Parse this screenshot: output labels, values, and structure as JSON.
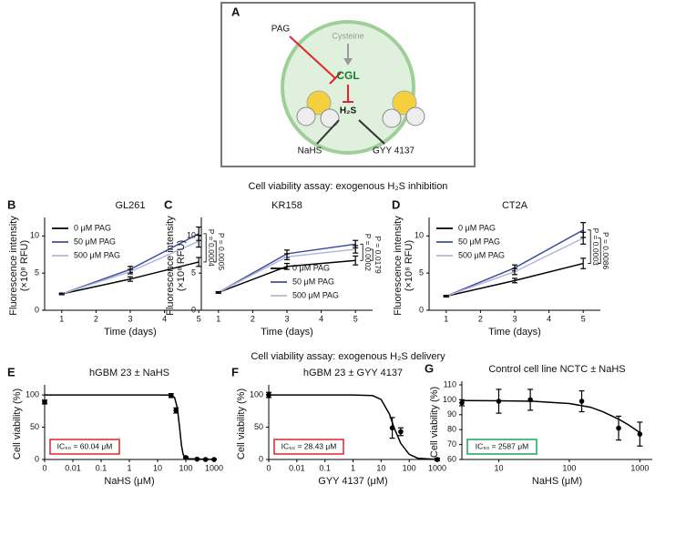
{
  "diagram": {
    "panel": "A",
    "inhibitor": "PAG",
    "substrate": "Cysteine",
    "enzyme": "CGL",
    "product": "H₂S",
    "donor_1": "NaHS",
    "donor_2": "GYY 4137"
  },
  "section_titles": [
    "Cell viability assay: exogenous H₂S inhibition",
    "Cell viability assay: exogenous H₂S delivery"
  ],
  "chart_data": [
    {
      "type": "line",
      "panel": "B",
      "title": "GL261",
      "xlabel": "Time (days)",
      "ylabel": [
        "Fluorescence intensity",
        "(×10⁸ RFU)"
      ],
      "x": [
        1,
        3,
        5
      ],
      "xlim": [
        0.5,
        5.5
      ],
      "xticks": [
        1,
        2,
        3,
        4,
        5
      ],
      "ylim": [
        0,
        12
      ],
      "yticks": [
        0,
        5,
        10
      ],
      "legend": "upper left",
      "series": [
        {
          "name": "0 μM PAG",
          "color": "#000000",
          "values": [
            2.2,
            4.2,
            6.5
          ],
          "errors": [
            0.1,
            0.3,
            0.6
          ]
        },
        {
          "name": "50 μM PAG",
          "color": "#3d50a0",
          "values": [
            2.2,
            5.5,
            10.3
          ],
          "errors": [
            0.1,
            0.4,
            0.9
          ]
        },
        {
          "name": "500 μM PAG",
          "color": "#b3b6dc",
          "values": [
            2.2,
            5.2,
            9.3
          ],
          "errors": [
            0.1,
            0.3,
            0.8
          ]
        }
      ],
      "annotations": [
        "P = 0.0004",
        "P = 0.0005"
      ]
    },
    {
      "type": "line",
      "panel": "C",
      "title": "KR158",
      "xlabel": "Time (days)",
      "ylabel": [
        "Fluorescence intensity",
        "(×10⁸ RFU)"
      ],
      "x": [
        1,
        3,
        5
      ],
      "xlim": [
        0.5,
        5.5
      ],
      "xticks": [
        1,
        2,
        3,
        4,
        5
      ],
      "ylim": [
        0,
        12
      ],
      "yticks": [
        0,
        5,
        10
      ],
      "legend": "lower right",
      "series": [
        {
          "name": "0 μM PAG",
          "color": "#000000",
          "values": [
            2.4,
            5.9,
            6.7
          ],
          "errors": [
            0.1,
            0.4,
            0.6
          ]
        },
        {
          "name": "50 μM PAG",
          "color": "#3d50a0",
          "values": [
            2.4,
            7.6,
            8.9
          ],
          "errors": [
            0.1,
            0.5,
            0.5
          ]
        },
        {
          "name": "500 μM PAG",
          "color": "#b3b6dc",
          "values": [
            2.4,
            7.2,
            8.2
          ],
          "errors": [
            0.1,
            0.4,
            0.5
          ]
        }
      ],
      "annotations": [
        "P = 0.0002",
        "P = 0.0179"
      ]
    },
    {
      "type": "line",
      "panel": "D",
      "title": "CT2A",
      "xlabel": "Time (days)",
      "ylabel": [
        "Fluorescence intensity",
        "(×10⁸ RFU)"
      ],
      "x": [
        1,
        3,
        5
      ],
      "xlim": [
        0.5,
        5.5
      ],
      "xticks": [
        1,
        2,
        3,
        4,
        5
      ],
      "ylim": [
        0,
        12
      ],
      "yticks": [
        0,
        5,
        10
      ],
      "legend": "upper left",
      "series": [
        {
          "name": "0 μM PAG",
          "color": "#000000",
          "values": [
            1.9,
            4.0,
            6.3
          ],
          "errors": [
            0.1,
            0.3,
            0.7
          ]
        },
        {
          "name": "50 μM PAG",
          "color": "#3d50a0",
          "values": [
            1.9,
            5.7,
            10.8
          ],
          "errors": [
            0.1,
            0.4,
            1.0
          ]
        },
        {
          "name": "500 μM PAG",
          "color": "#b3b6dc",
          "values": [
            1.9,
            5.2,
            9.7
          ],
          "errors": [
            0.1,
            0.4,
            0.8
          ]
        }
      ],
      "annotations": [
        "P = 0.0003",
        "P = 0.0086"
      ]
    },
    {
      "type": "scatter",
      "panel": "E",
      "title": "hGBM 23 ± NaHS",
      "xlabel": "NaHS (μM)",
      "ylabel": "Cell viability (%)",
      "xscale": "log",
      "xlim": [
        0,
        1000
      ],
      "xticks": [
        0,
        0.01,
        0.1,
        1,
        10,
        100,
        1000
      ],
      "ylim": [
        0,
        110
      ],
      "yticks": [
        0,
        50,
        100
      ],
      "color": "#000000",
      "x": [
        0,
        30,
        45,
        100,
        250,
        500,
        1000
      ],
      "values": [
        89,
        99,
        76,
        3,
        0.5,
        0,
        0
      ],
      "errors": [
        3,
        3,
        4,
        1,
        0.5,
        0.5,
        0.5
      ],
      "fit": {
        "x": [
          0,
          0.01,
          1,
          10,
          30,
          40,
          50,
          60,
          70,
          80,
          100,
          1000
        ],
        "y": [
          100,
          100,
          100,
          100,
          99.8,
          96,
          80,
          50,
          22,
          8,
          1.2,
          0
        ]
      },
      "annotation": "IC₅₀ = 60.04 μM",
      "annotation_color": "#e0262b"
    },
    {
      "type": "scatter",
      "panel": "F",
      "title": "hGBM 23 ± GYY 4137",
      "xlabel": "GYY 4137 (μM)",
      "ylabel": "Cell viability (%)",
      "xscale": "log",
      "xlim": [
        0,
        1000
      ],
      "xticks": [
        0,
        0.01,
        0.1,
        1,
        10,
        100,
        1000
      ],
      "ylim": [
        0,
        110
      ],
      "yticks": [
        0,
        50,
        100
      ],
      "color": "#000000",
      "x": [
        0,
        25,
        50,
        1000
      ],
      "values": [
        100,
        49,
        43,
        0
      ],
      "errors": [
        4,
        16,
        6,
        2
      ],
      "fit": {
        "x": [
          0,
          0.01,
          1,
          5,
          10,
          20,
          28.43,
          50,
          100,
          200,
          1000
        ],
        "y": [
          100,
          100,
          100,
          99,
          93,
          70,
          50,
          25,
          8,
          2,
          0
        ]
      },
      "annotation": "IC₅₀ = 28.43 μM",
      "annotation_color": "#e0262b"
    },
    {
      "type": "scatter",
      "panel": "G",
      "title": "Control cell line NCTC ± NaHS",
      "xlabel": "NaHS (μM)",
      "ylabel": "Cell viability (%)",
      "xscale": "log",
      "xlim": [
        3,
        1500
      ],
      "xticks": [
        10,
        100,
        1000
      ],
      "ylim": [
        60,
        110
      ],
      "yticks": [
        60,
        70,
        80,
        90,
        100,
        110
      ],
      "color": "#000000",
      "x": [
        3,
        10,
        28,
        150,
        500,
        1000
      ],
      "values": [
        98,
        99,
        100,
        99,
        81,
        77
      ],
      "errors": [
        2,
        8,
        7,
        7,
        8,
        8
      ],
      "fit": {
        "x": [
          3,
          10,
          30,
          100,
          200,
          300,
          500,
          700,
          1000
        ],
        "y": [
          99.5,
          99.3,
          99,
          97.5,
          95,
          92,
          87,
          83,
          78
        ]
      },
      "annotation": "IC₅₀ = 2587 μM",
      "annotation_color": "#1fa05a"
    }
  ]
}
